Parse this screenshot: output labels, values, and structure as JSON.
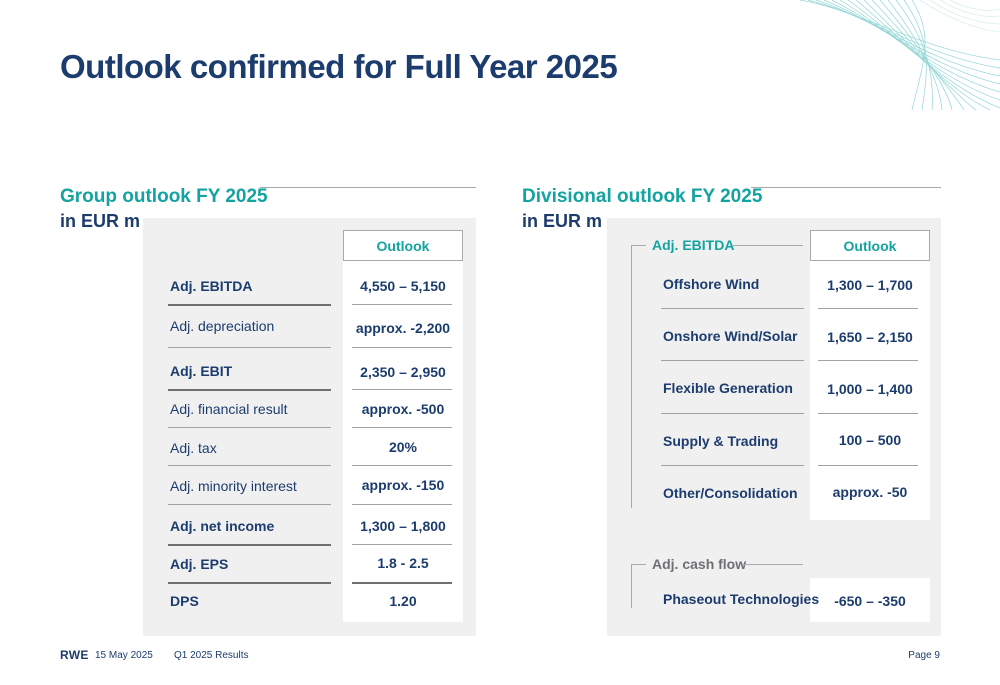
{
  "page": {
    "title": "Outlook confirmed for Full Year 2025"
  },
  "group_outlook": {
    "heading": "Group outlook FY 2025",
    "unit": "in EUR m",
    "column_header": "Outlook",
    "rows": [
      {
        "label": "Adj. EBITDA",
        "value": "4,550 – 5,150"
      },
      {
        "label": "Adj. depreciation",
        "value": "approx. -2,200"
      },
      {
        "label": "Adj. EBIT",
        "value": "2,350 – 2,950"
      },
      {
        "label": "Adj. financial result",
        "value": "approx. -500"
      },
      {
        "label": "Adj. tax",
        "value": "20%"
      },
      {
        "label": "Adj. minority interest",
        "value": "approx. -150"
      },
      {
        "label": "Adj. net income",
        "value": "1,300 – 1,800"
      },
      {
        "label": "Adj. EPS",
        "value": "1.8 - 2.5"
      },
      {
        "label": "DPS",
        "value": "1.20"
      }
    ]
  },
  "divisional_outlook": {
    "heading": "Divisional outlook FY 2025",
    "unit": "in EUR m",
    "column_header": "Outlook",
    "ebitda_group": {
      "label": "Adj. EBITDA",
      "rows": [
        {
          "label": "Offshore Wind",
          "value": "1,300 – 1,700"
        },
        {
          "label": "Onshore Wind/Solar",
          "value": "1,650 – 2,150"
        },
        {
          "label": "Flexible Generation",
          "value": "1,000 – 1,400"
        },
        {
          "label": "Supply & Trading",
          "value": "100 – 500"
        },
        {
          "label": "Other/Consolidation",
          "value": "approx. -50"
        }
      ]
    },
    "cashflow_group": {
      "label": "Adj. cash flow",
      "rows": [
        {
          "label": "Phaseout Technologies",
          "value": "-650 – -350"
        }
      ]
    }
  },
  "footer": {
    "logo": "RWE",
    "date": "15 May 2025",
    "doc": "Q1 2025 Results",
    "page": "Page 9"
  },
  "colors": {
    "navy": "#1d3c6e",
    "teal": "#13a3a0",
    "panel": "#f0f0f0",
    "gray": "#a7a9ac"
  }
}
